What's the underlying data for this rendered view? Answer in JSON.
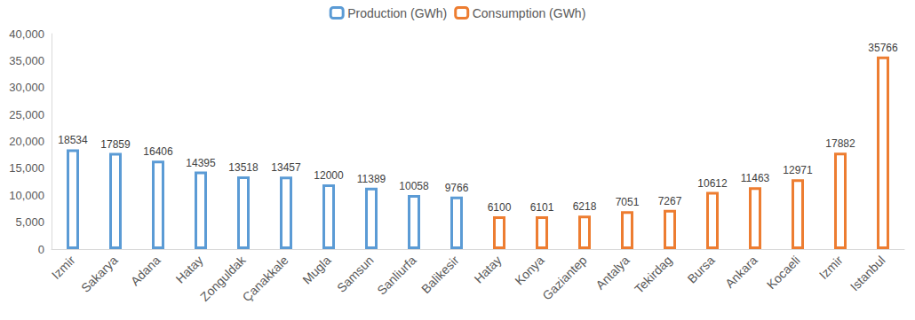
{
  "chart_data": {
    "type": "bar",
    "categories": [
      "Izmir",
      "Sakarya",
      "Adana",
      "Hatay",
      "Zonguldak",
      "Çanakkale",
      "Mugla",
      "Samsun",
      "Sanliurfa",
      "Balikesir",
      "Hatay",
      "Konya",
      "Gaziantep",
      "Antalya",
      "Tekirdag",
      "Bursa",
      "Ankara",
      "Kocaeli",
      "Izmir",
      "Istanbul"
    ],
    "series": [
      {
        "name": "Production (GWh)",
        "color": "#5b9bd5",
        "values": [
          18534,
          17859,
          16406,
          14395,
          13518,
          13457,
          12000,
          11389,
          10058,
          9766,
          null,
          null,
          null,
          null,
          null,
          null,
          null,
          null,
          null,
          null
        ]
      },
      {
        "name": "Consumption (GWh)",
        "color": "#ed7d31",
        "values": [
          null,
          null,
          null,
          null,
          null,
          null,
          null,
          null,
          null,
          null,
          6100,
          6101,
          6218,
          7051,
          7267,
          10612,
          11463,
          12971,
          17882,
          35766
        ]
      }
    ],
    "ylim": [
      0,
      40000
    ],
    "yticks": [
      0,
      5000,
      10000,
      15000,
      20000,
      25000,
      30000,
      35000,
      40000
    ],
    "grid": false,
    "legend": "top",
    "data_labels": true
  }
}
